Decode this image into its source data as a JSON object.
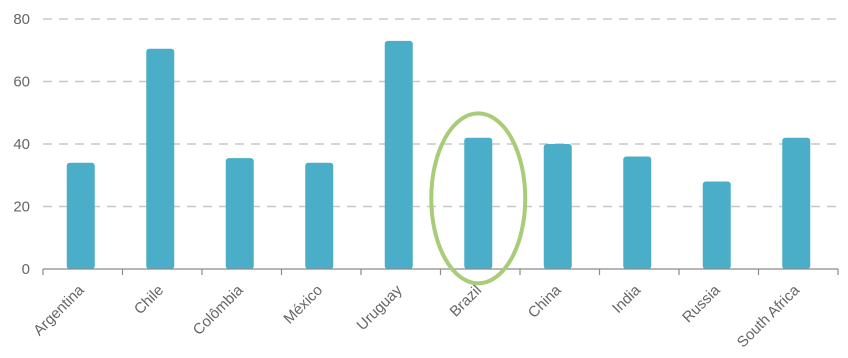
{
  "chart_data": {
    "type": "bar",
    "title": "",
    "xlabel": "",
    "ylabel": "",
    "categories": [
      "Argentina",
      "Chile",
      "Colômbia",
      "México",
      "Uruguay",
      "Brazil",
      "China",
      "India",
      "Russia",
      "South Africa"
    ],
    "values": [
      34,
      70.5,
      35.5,
      34,
      73,
      42,
      40,
      36,
      28,
      42
    ],
    "ylim": [
      0,
      80
    ],
    "yticks": [
      0,
      20,
      40,
      60,
      80
    ],
    "grid": true,
    "legend": "none",
    "highlight": "Brazil",
    "colors": {
      "bar": "#4aaec8",
      "grid": "#c8c8c8",
      "axis": "#8a8a8a",
      "label": "#666666",
      "highlight": "#a8cc78"
    }
  }
}
